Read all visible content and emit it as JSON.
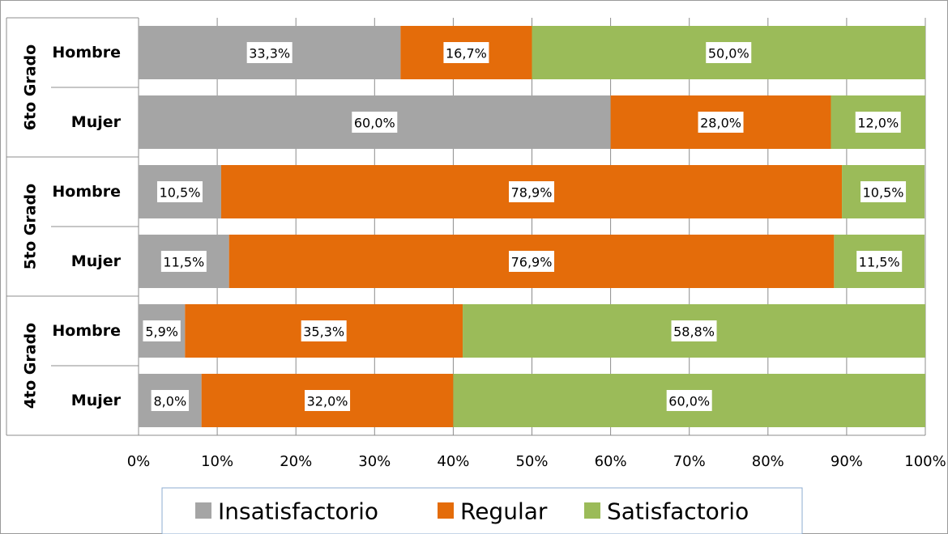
{
  "chart_data": {
    "type": "bar",
    "orientation": "horizontal",
    "stacked": "percent",
    "groups": [
      {
        "label": "6to Grado",
        "rows": [
          {
            "label": "Hombre",
            "values": [
              33.3,
              16.7,
              50.0
            ],
            "labels": [
              "33,3%",
              "16,7%",
              "50,0%"
            ]
          },
          {
            "label": "Mujer",
            "values": [
              60.0,
              28.0,
              12.0
            ],
            "labels": [
              "60,0%",
              "28,0%",
              "12,0%"
            ]
          }
        ]
      },
      {
        "label": "5to Grado",
        "rows": [
          {
            "label": "Hombre",
            "values": [
              10.5,
              78.9,
              10.5
            ],
            "labels": [
              "10,5%",
              "78,9%",
              "10,5%"
            ]
          },
          {
            "label": "Mujer",
            "values": [
              11.5,
              76.9,
              11.5
            ],
            "labels": [
              "11,5%",
              "76,9%",
              "11,5%"
            ]
          }
        ]
      },
      {
        "label": "4to Grado",
        "rows": [
          {
            "label": "Hombre",
            "values": [
              5.9,
              35.3,
              58.8
            ],
            "labels": [
              "5,9%",
              "35,3%",
              "58,8%"
            ]
          },
          {
            "label": "Mujer",
            "values": [
              8.0,
              32.0,
              60.0
            ],
            "labels": [
              "8,0%",
              "32,0%",
              "60,0%"
            ]
          }
        ]
      }
    ],
    "series": [
      {
        "name": "Insatisfactorio",
        "color": "#a5a5a5"
      },
      {
        "name": "Regular",
        "color": "#e46c0a"
      },
      {
        "name": "Satisfactorio",
        "color": "#9bbb59"
      }
    ],
    "xlim": [
      0,
      100
    ],
    "x_ticks": [
      "0%",
      "10%",
      "20%",
      "30%",
      "40%",
      "50%",
      "60%",
      "70%",
      "80%",
      "90%",
      "100%"
    ],
    "grid": true,
    "legend_position": "bottom"
  }
}
